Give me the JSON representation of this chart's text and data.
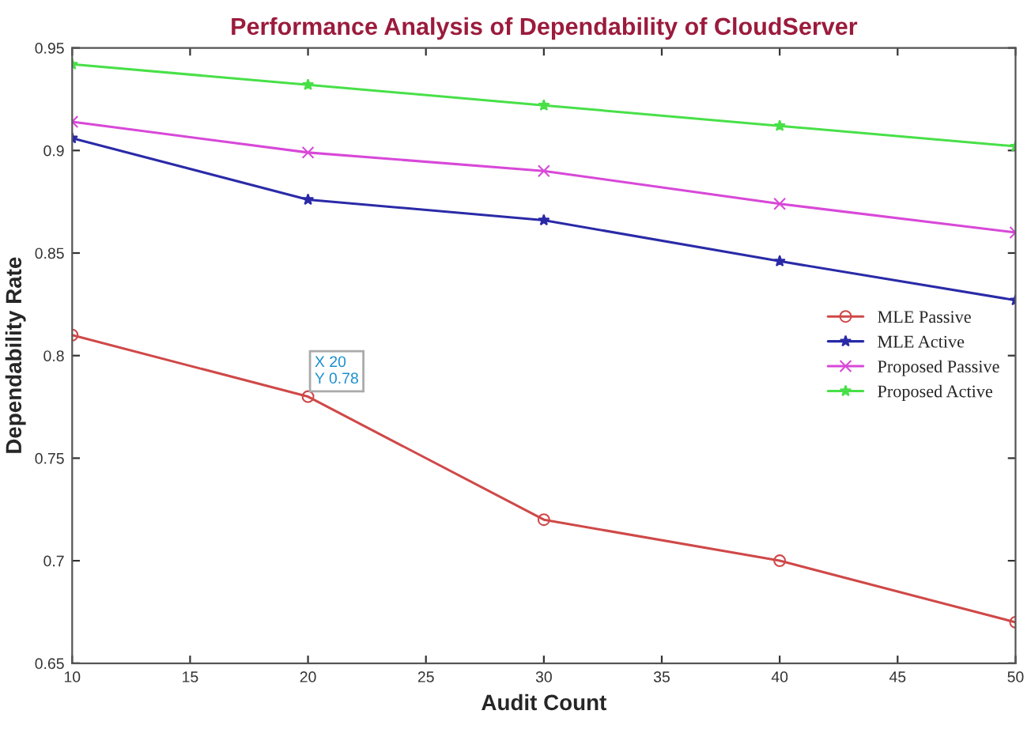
{
  "chart_data": {
    "type": "line",
    "title": "Performance Analysis of Dependability of CloudServer",
    "xlabel": "Audit Count",
    "ylabel": "Dependability Rate",
    "x": [
      10,
      20,
      30,
      40,
      50
    ],
    "series": [
      {
        "name": "MLE Passive",
        "color": "#d04848",
        "marker": "circle",
        "values": [
          0.81,
          0.78,
          0.72,
          0.7,
          0.67
        ]
      },
      {
        "name": "MLE Active",
        "color": "#2a2aa8",
        "marker": "star",
        "values": [
          0.906,
          0.876,
          0.866,
          0.846,
          0.827
        ]
      },
      {
        "name": "Proposed Passive",
        "color": "#d848d8",
        "marker": "cross",
        "values": [
          0.914,
          0.899,
          0.89,
          0.874,
          0.86
        ]
      },
      {
        "name": "Proposed Active",
        "color": "#48e048",
        "marker": "star",
        "values": [
          0.942,
          0.932,
          0.922,
          0.912,
          0.902
        ]
      }
    ],
    "annotations": [
      {
        "text": "X 20\nY 0.78",
        "x": 20,
        "y": 0.78
      }
    ],
    "xlim": [
      10,
      50
    ],
    "xticks": [
      10,
      15,
      20,
      25,
      30,
      35,
      40,
      45,
      50
    ],
    "ylim": [
      0.65,
      0.95
    ],
    "yticks": [
      0.65,
      0.7,
      0.75,
      0.8,
      0.85,
      0.9,
      0.95
    ],
    "grid": false,
    "legend": "right",
    "line_style": "solid"
  }
}
